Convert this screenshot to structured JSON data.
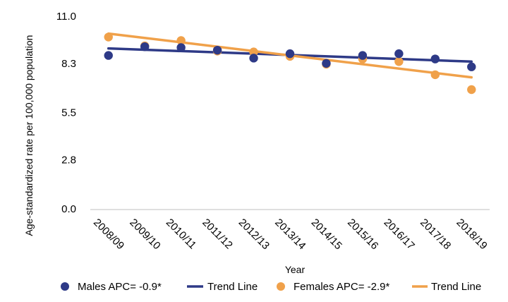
{
  "chart_data": {
    "type": "scatter",
    "title": "",
    "xlabel": "Year",
    "ylabel": "Age-standardized rate per 100,000 population",
    "categories": [
      "2008/09",
      "2009/10",
      "2010/11",
      "2011/12",
      "2012/13",
      "2013/14",
      "2014/15",
      "2015/16",
      "2016/17",
      "2017/18",
      "2018/19"
    ],
    "ylim": [
      0,
      11.0
    ],
    "yticks": [
      "0.0",
      "2.8",
      "5.5",
      "8.3",
      "11.0"
    ],
    "grid": false,
    "legend_position": "bottom",
    "series": [
      {
        "name": "Males  APC= -0.9*",
        "kind": "points",
        "color": "#2e3a87",
        "values": [
          8.8,
          9.3,
          9.25,
          9.1,
          8.65,
          8.9,
          8.35,
          8.8,
          8.9,
          8.6,
          8.15
        ]
      },
      {
        "name": "Females  APC= -2.9*",
        "kind": "points",
        "color": "#f0a14a",
        "values": [
          9.85,
          9.35,
          9.65,
          9.05,
          9.0,
          8.75,
          8.3,
          8.6,
          8.45,
          7.7,
          6.85
        ]
      }
    ],
    "trend_lines": [
      {
        "name": "Trend Line",
        "color": "#2e3a87",
        "start": 9.2,
        "end": 8.45
      },
      {
        "name": "Trend Line",
        "color": "#f0a14a",
        "start": 10.05,
        "end": 7.55
      }
    ]
  }
}
